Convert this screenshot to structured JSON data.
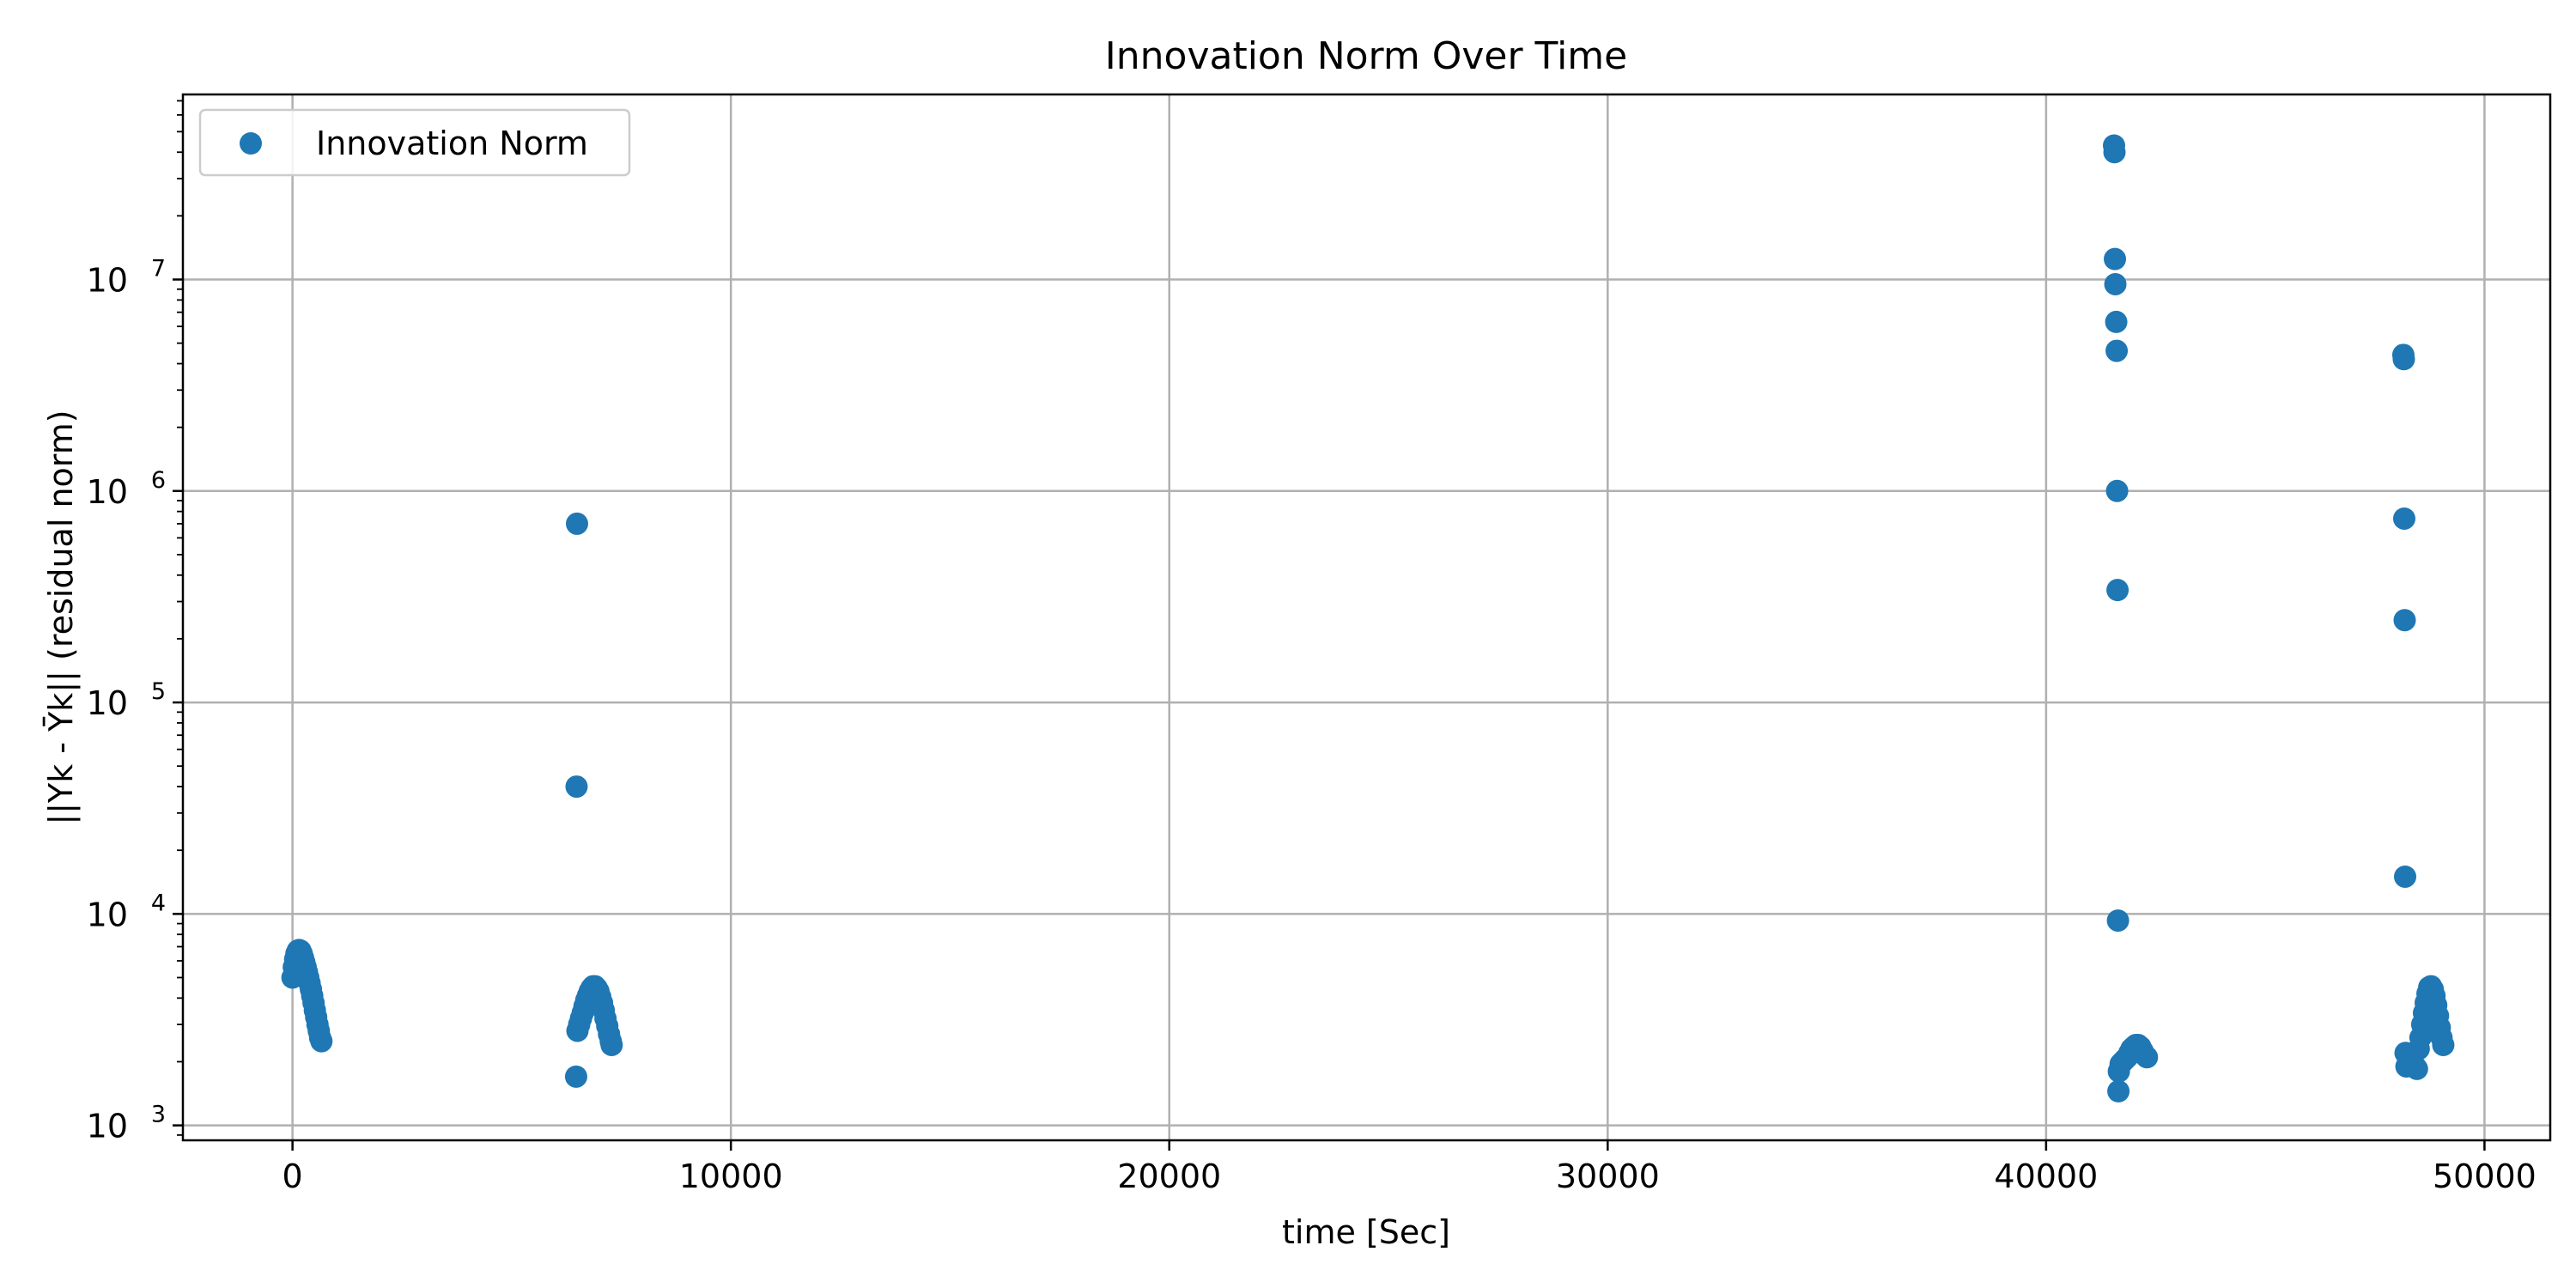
{
  "chart_data": {
    "type": "scatter",
    "title": "Innovation Norm Over Time",
    "xlabel": "time [Sec]",
    "ylabel": "||Yk - Ȳk|| (residual norm)",
    "xlim": [
      -2500,
      51500
    ],
    "ylim": [
      850,
      75000000
    ],
    "yscale": "log",
    "grid": true,
    "legend": "top-left",
    "x_ticks": [
      0,
      10000,
      20000,
      30000,
      40000,
      50000
    ],
    "x_tick_labels": [
      "0",
      "10000",
      "20000",
      "30000",
      "40000",
      "50000"
    ],
    "y_ticks": [
      {
        "value": 1000,
        "base": "10",
        "exp": "3"
      },
      {
        "value": 10000,
        "base": "10",
        "exp": "4"
      },
      {
        "value": 100000,
        "base": "10",
        "exp": "5"
      },
      {
        "value": 1000000,
        "base": "10",
        "exp": "6"
      },
      {
        "value": 10000000,
        "base": "10",
        "exp": "7"
      }
    ],
    "color": "#1f77b4",
    "series": [
      {
        "name": "Innovation Norm",
        "points": [
          [
            0,
            5000
          ],
          [
            30,
            5600
          ],
          [
            60,
            6100
          ],
          [
            90,
            6500
          ],
          [
            120,
            6700
          ],
          [
            150,
            6750
          ],
          [
            180,
            6700
          ],
          [
            210,
            6500
          ],
          [
            240,
            6200
          ],
          [
            270,
            5900
          ],
          [
            300,
            5600
          ],
          [
            330,
            5300
          ],
          [
            360,
            5000
          ],
          [
            390,
            4700
          ],
          [
            420,
            4400
          ],
          [
            450,
            4100
          ],
          [
            480,
            3800
          ],
          [
            510,
            3500
          ],
          [
            540,
            3250
          ],
          [
            570,
            3000
          ],
          [
            600,
            2800
          ],
          [
            630,
            2600
          ],
          [
            660,
            2500
          ],
          [
            6470,
            1700
          ],
          [
            6480,
            40000
          ],
          [
            6490,
            700000
          ],
          [
            6500,
            2800
          ],
          [
            6540,
            3000
          ],
          [
            6580,
            3200
          ],
          [
            6620,
            3400
          ],
          [
            6660,
            3650
          ],
          [
            6700,
            3900
          ],
          [
            6740,
            4100
          ],
          [
            6780,
            4300
          ],
          [
            6820,
            4450
          ],
          [
            6860,
            4550
          ],
          [
            6900,
            4550
          ],
          [
            6940,
            4450
          ],
          [
            6980,
            4300
          ],
          [
            7020,
            4050
          ],
          [
            7060,
            3800
          ],
          [
            7100,
            3500
          ],
          [
            7140,
            3200
          ],
          [
            7180,
            2950
          ],
          [
            7220,
            2700
          ],
          [
            7260,
            2500
          ],
          [
            7280,
            2400
          ],
          [
            41550,
            43000000
          ],
          [
            41560,
            40000000
          ],
          [
            41570,
            12500000
          ],
          [
            41580,
            9500000
          ],
          [
            41600,
            6300000
          ],
          [
            41610,
            4600000
          ],
          [
            41620,
            1000000
          ],
          [
            41630,
            340000
          ],
          [
            41640,
            9300
          ],
          [
            41650,
            1450
          ],
          [
            41660,
            1800
          ],
          [
            41700,
            1950
          ],
          [
            41750,
            2000
          ],
          [
            41800,
            2050
          ],
          [
            41850,
            2100
          ],
          [
            41900,
            2200
          ],
          [
            41950,
            2300
          ],
          [
            42000,
            2350
          ],
          [
            42050,
            2400
          ],
          [
            42100,
            2400
          ],
          [
            42150,
            2350
          ],
          [
            42200,
            2250
          ],
          [
            42250,
            2150
          ],
          [
            42300,
            2100
          ],
          [
            48150,
            4400000
          ],
          [
            48160,
            4200000
          ],
          [
            48170,
            740000
          ],
          [
            48180,
            245000
          ],
          [
            48190,
            15000
          ],
          [
            48200,
            2200
          ],
          [
            48220,
            1900
          ],
          [
            48260,
            2000
          ],
          [
            48300,
            2100
          ],
          [
            48340,
            2000
          ],
          [
            48380,
            1950
          ],
          [
            48420,
            1900
          ],
          [
            48460,
            1850
          ],
          [
            48500,
            2300
          ],
          [
            48540,
            2600
          ],
          [
            48580,
            3000
          ],
          [
            48620,
            3400
          ],
          [
            48660,
            3800
          ],
          [
            48700,
            4200
          ],
          [
            48740,
            4500
          ],
          [
            48780,
            4550
          ],
          [
            48820,
            4400
          ],
          [
            48860,
            4100
          ],
          [
            48900,
            3700
          ],
          [
            48940,
            3300
          ],
          [
            48980,
            2900
          ],
          [
            49020,
            2600
          ],
          [
            49060,
            2400
          ]
        ]
      }
    ]
  }
}
